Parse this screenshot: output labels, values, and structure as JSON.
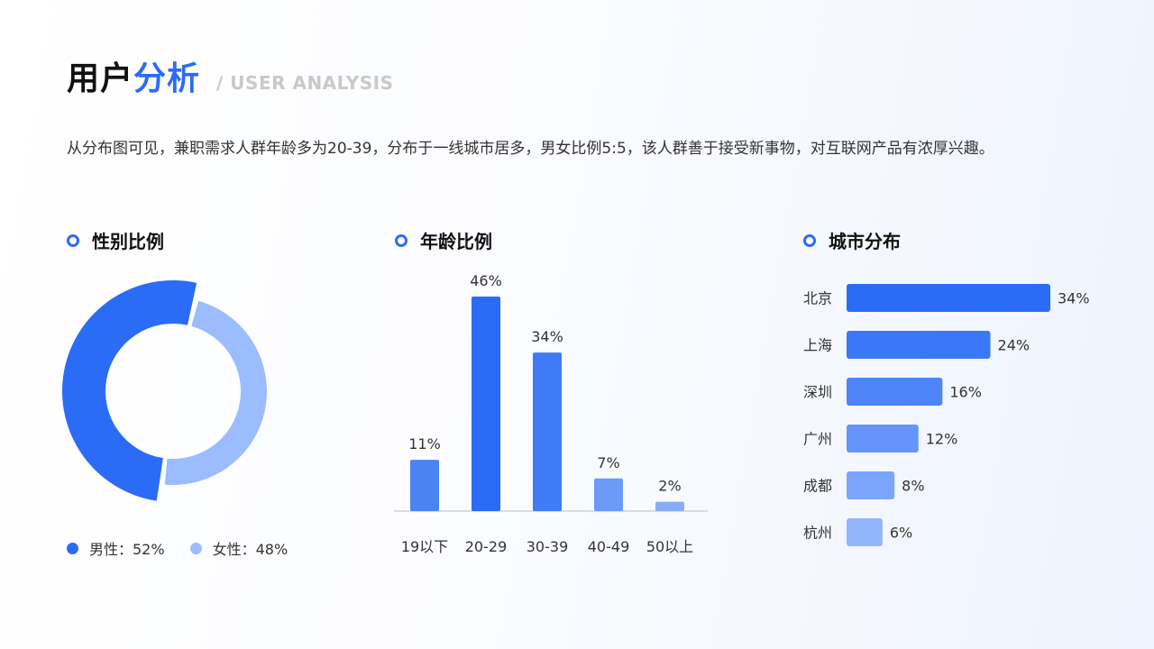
{
  "header": {
    "title_part1": "用户",
    "title_part2": "分析",
    "subtitle": "/ USER ANALYSIS",
    "description": "从分布图可见，兼职需求人群年龄多为20-39，分布于一线城市居多，男女比例5:5，该人群善于接受新事物，对互联网产品有浓厚兴趣。"
  },
  "sections": {
    "gender": "性别比例",
    "age": "年龄比例",
    "city": "城市分布"
  },
  "colors": {
    "primary": "#2b6cf6",
    "light": "#9bbcff",
    "accent": "#2b6cf6"
  },
  "chart_data": [
    {
      "type": "pie",
      "categories": [
        "男性",
        "女性"
      ],
      "values": [
        52,
        48
      ],
      "legend_labels": [
        "男性：52%",
        "女性：48%"
      ],
      "colors": [
        "#2b6cf6",
        "#9bbcff"
      ],
      "legend": "bottom"
    },
    {
      "type": "bar",
      "categories": [
        "19以下",
        "20-29",
        "30-39",
        "40-49",
        "50以上"
      ],
      "values": [
        11,
        46,
        34,
        7,
        2
      ],
      "labels": [
        "11%",
        "46%",
        "34%",
        "7%",
        "2%"
      ],
      "colors": [
        "#4a84f3",
        "#2b6cf6",
        "#3f7bf4",
        "#6a9bf6",
        "#86adf8"
      ]
    },
    {
      "type": "bar",
      "orientation": "horizontal",
      "categories": [
        "北京",
        "上海",
        "深圳",
        "广州",
        "成都",
        "杭州"
      ],
      "values": [
        34,
        24,
        16,
        12,
        8,
        6
      ],
      "labels": [
        "34%",
        "24%",
        "16%",
        "12%",
        "8%",
        "6%"
      ],
      "colors": [
        "#2b6cf6",
        "#3b78f7",
        "#4d85f8",
        "#6595f9",
        "#7ba5fa",
        "#92b6fb"
      ]
    }
  ]
}
